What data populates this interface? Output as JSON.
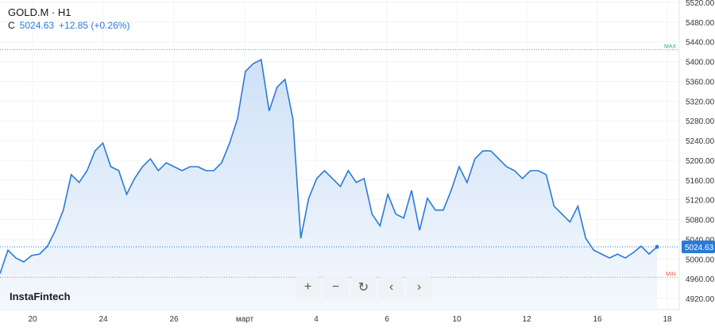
{
  "header": {
    "symbol": "GOLD.M · H1",
    "close_label": "C",
    "close": "5024.63",
    "change": "+12.85 (+0.26%)"
  },
  "logo": "InstaFintech",
  "controls": [
    {
      "name": "zoom-in",
      "icon": "+"
    },
    {
      "name": "zoom-out",
      "icon": "−"
    },
    {
      "name": "reset",
      "icon": "↻"
    },
    {
      "name": "scroll-left",
      "icon": "‹"
    },
    {
      "name": "scroll-right",
      "icon": "›"
    }
  ],
  "chart_data": {
    "type": "area",
    "ylim": [
      4900,
      5540
    ],
    "y_ticks": [
      5520,
      5480,
      5440,
      5400,
      5360,
      5320,
      5280,
      5240,
      5200,
      5160,
      5120,
      5080,
      5040,
      5000,
      4960,
      4920
    ],
    "x_ticks": [
      "20",
      "24",
      "26",
      "март",
      "4",
      "6",
      "10",
      "12",
      "16",
      "18"
    ],
    "max_label": "MAX",
    "max_value": 5424,
    "min_label": "MIN",
    "min_value": 4963,
    "last_value": "5024.63",
    "colors": {
      "line": "#2a7ad8",
      "fill": "#cfe1f7",
      "max": "#26a69a",
      "min": "#ef5350"
    },
    "values": [
      4970,
      5018,
      5002,
      4994,
      5007,
      5010,
      5026,
      5058,
      5099,
      5171,
      5155,
      5179,
      5219,
      5235,
      5187,
      5179,
      5131,
      5163,
      5187,
      5203,
      5179,
      5195,
      5187,
      5179,
      5187,
      5187,
      5179,
      5179,
      5195,
      5235,
      5284,
      5380,
      5396,
      5404,
      5300,
      5348,
      5364,
      5284,
      5042,
      5123,
      5163,
      5179,
      5163,
      5147,
      5179,
      5155,
      5163,
      5091,
      5067,
      5131,
      5091,
      5083,
      5139,
      5058,
      5123,
      5099,
      5099,
      5139,
      5187,
      5155,
      5203,
      5219,
      5219,
      5203,
      5187,
      5179,
      5163,
      5179,
      5179,
      5171,
      5107,
      5091,
      5075,
      5107,
      5042,
      5018,
      5010,
      5002,
      5010,
      5002,
      5013,
      5026,
      5010,
      5024.63
    ]
  }
}
